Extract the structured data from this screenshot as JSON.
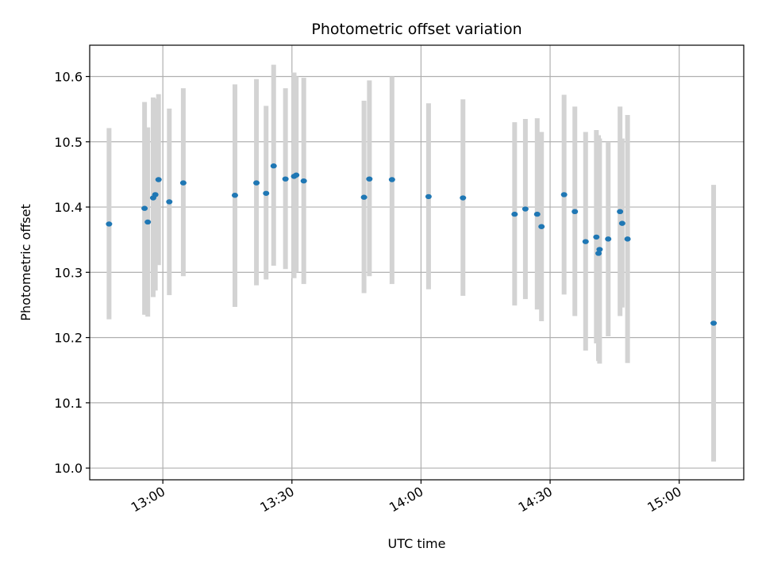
{
  "chart_data": {
    "type": "scatter",
    "title": "Photometric offset variation",
    "xlabel": "UTC time",
    "ylabel": "Photometric offset",
    "x_unit": "UTC time (HH:MM)",
    "xlim": [
      "12:43",
      "15:15"
    ],
    "ylim": [
      9.982,
      10.648
    ],
    "x_ticks": [
      "13:00",
      "13:30",
      "14:00",
      "14:30",
      "15:00"
    ],
    "y_ticks": [
      "10.0",
      "10.1",
      "10.2",
      "10.3",
      "10.4",
      "10.5",
      "10.6"
    ],
    "grid": true,
    "colors": {
      "points": "#1f77b4",
      "error_bars": "#d3d3d3",
      "grid": "#b0b0b0"
    },
    "points": [
      {
        "t": "12:47:30",
        "y": 10.374,
        "low": 10.228,
        "high": 10.521
      },
      {
        "t": "12:55:45",
        "y": 10.398,
        "low": 10.235,
        "high": 10.561
      },
      {
        "t": "12:56:30",
        "y": 10.377,
        "low": 10.232,
        "high": 10.522
      },
      {
        "t": "12:57:45",
        "y": 10.414,
        "low": 10.262,
        "high": 10.568
      },
      {
        "t": "12:58:15",
        "y": 10.419,
        "low": 10.272,
        "high": 10.566
      },
      {
        "t": "12:59:00",
        "y": 10.442,
        "low": 10.311,
        "high": 10.573
      },
      {
        "t": "13:01:30",
        "y": 10.408,
        "low": 10.265,
        "high": 10.551
      },
      {
        "t": "13:04:45",
        "y": 10.437,
        "low": 10.294,
        "high": 10.582
      },
      {
        "t": "13:16:45",
        "y": 10.418,
        "low": 10.247,
        "high": 10.588
      },
      {
        "t": "13:21:45",
        "y": 10.437,
        "low": 10.28,
        "high": 10.596
      },
      {
        "t": "13:24:00",
        "y": 10.421,
        "low": 10.289,
        "high": 10.555
      },
      {
        "t": "13:25:45",
        "y": 10.463,
        "low": 10.31,
        "high": 10.618
      },
      {
        "t": "13:28:30",
        "y": 10.443,
        "low": 10.305,
        "high": 10.582
      },
      {
        "t": "13:30:30",
        "y": 10.447,
        "low": 10.291,
        "high": 10.606
      },
      {
        "t": "13:31:00",
        "y": 10.449,
        "low": 10.3,
        "high": 10.6
      },
      {
        "t": "13:32:45",
        "y": 10.44,
        "low": 10.282,
        "high": 10.598
      },
      {
        "t": "13:46:45",
        "y": 10.415,
        "low": 10.268,
        "high": 10.563
      },
      {
        "t": "13:48:00",
        "y": 10.443,
        "low": 10.294,
        "high": 10.594
      },
      {
        "t": "13:53:15",
        "y": 10.442,
        "low": 10.282,
        "high": 10.6
      },
      {
        "t": "14:01:45",
        "y": 10.416,
        "low": 10.274,
        "high": 10.559
      },
      {
        "t": "14:09:45",
        "y": 10.414,
        "low": 10.264,
        "high": 10.565
      },
      {
        "t": "14:21:45",
        "y": 10.389,
        "low": 10.249,
        "high": 10.53
      },
      {
        "t": "14:24:15",
        "y": 10.397,
        "low": 10.259,
        "high": 10.535
      },
      {
        "t": "14:27:00",
        "y": 10.389,
        "low": 10.243,
        "high": 10.536
      },
      {
        "t": "14:28:00",
        "y": 10.37,
        "low": 10.225,
        "high": 10.515
      },
      {
        "t": "14:33:15",
        "y": 10.419,
        "low": 10.266,
        "high": 10.572
      },
      {
        "t": "14:35:45",
        "y": 10.393,
        "low": 10.233,
        "high": 10.554
      },
      {
        "t": "14:38:15",
        "y": 10.347,
        "low": 10.18,
        "high": 10.515
      },
      {
        "t": "14:40:45",
        "y": 10.354,
        "low": 10.191,
        "high": 10.518
      },
      {
        "t": "14:41:15",
        "y": 10.329,
        "low": 10.164,
        "high": 10.51
      },
      {
        "t": "14:41:30",
        "y": 10.335,
        "low": 10.16,
        "high": 10.505
      },
      {
        "t": "14:43:30",
        "y": 10.351,
        "low": 10.202,
        "high": 10.5
      },
      {
        "t": "14:46:15",
        "y": 10.393,
        "low": 10.233,
        "high": 10.554
      },
      {
        "t": "14:46:45",
        "y": 10.375,
        "low": 10.246,
        "high": 10.505
      },
      {
        "t": "14:48:00",
        "y": 10.351,
        "low": 10.161,
        "high": 10.541
      },
      {
        "t": "15:08:00",
        "y": 10.222,
        "low": 10.01,
        "high": 10.434
      }
    ]
  }
}
